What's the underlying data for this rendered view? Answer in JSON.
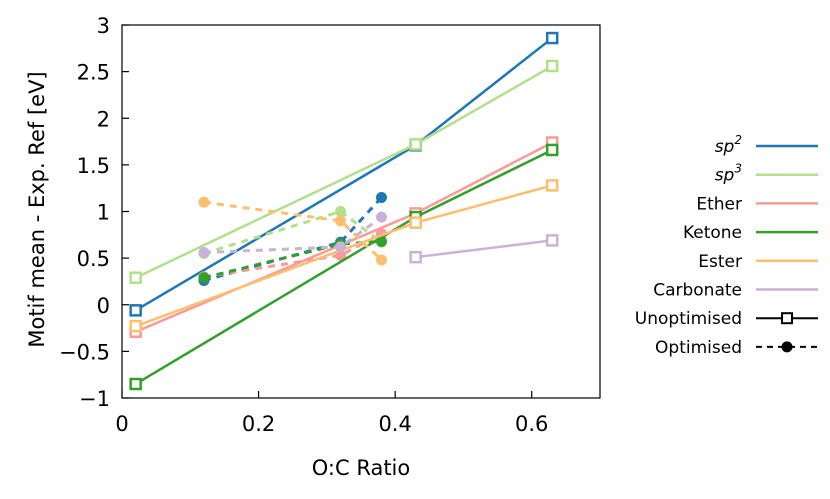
{
  "chart_data": {
    "type": "line",
    "xlabel": "O:C Ratio",
    "ylabel": "Motif mean - Exp. Ref [eV]",
    "xlim": [
      0,
      0.7
    ],
    "ylim": [
      -1,
      3
    ],
    "xticks": [
      0,
      0.2,
      0.4,
      0.6
    ],
    "xtick_labels": [
      "0",
      "0.2",
      "0.4",
      "0.6"
    ],
    "yticks": [
      -1,
      -0.5,
      0,
      0.5,
      1,
      1.5,
      2,
      2.5,
      3
    ],
    "ytick_labels": [
      "−1",
      "−0.5",
      "0",
      "0.5",
      "1",
      "1.5",
      "2",
      "2.5",
      "3"
    ],
    "grid": false,
    "legend_placement": "right-outside",
    "series": [
      {
        "name": "sp",
        "name_sup": "2",
        "italic": true,
        "color": "#1f78b4",
        "unoptimised": {
          "x": [
            0.02,
            0.43,
            0.63
          ],
          "y": [
            -0.06,
            1.71,
            2.86
          ]
        },
        "optimised": {
          "x": [
            0.12,
            0.32,
            0.38
          ],
          "y": [
            0.26,
            0.67,
            1.15
          ]
        }
      },
      {
        "name": "sp",
        "name_sup": "3",
        "italic": true,
        "color": "#b2df8a",
        "unoptimised": {
          "x": [
            0.02,
            0.43,
            0.63
          ],
          "y": [
            0.29,
            1.72,
            2.56
          ]
        },
        "optimised": {
          "x": [
            0.12,
            0.32,
            0.38
          ],
          "y": [
            0.55,
            1.0,
            0.67
          ]
        }
      },
      {
        "name": "Ether",
        "color": "#fb9a99",
        "unoptimised": {
          "x": [
            0.02,
            0.43,
            0.63
          ],
          "y": [
            -0.29,
            0.98,
            1.74
          ]
        },
        "optimised": {
          "x": [
            0.12,
            0.32,
            0.38
          ],
          "y": [
            0.3,
            0.53,
            0.76
          ]
        }
      },
      {
        "name": "Ketone",
        "color": "#33a02c",
        "unoptimised": {
          "x": [
            0.02,
            0.43,
            0.63
          ],
          "y": [
            -0.85,
            0.94,
            1.66
          ]
        },
        "optimised": {
          "x": [
            0.12,
            0.32,
            0.38
          ],
          "y": [
            0.29,
            0.65,
            0.68
          ]
        }
      },
      {
        "name": "Ester",
        "color": "#fdbf6f",
        "unoptimised": {
          "x": [
            0.02,
            0.43,
            0.63
          ],
          "y": [
            -0.23,
            0.88,
            1.28
          ]
        },
        "optimised": {
          "x": [
            0.12,
            0.32,
            0.38
          ],
          "y": [
            1.1,
            0.9,
            0.48
          ]
        }
      },
      {
        "name": "Carbonate",
        "color": "#cab2d6",
        "unoptimised": {
          "x": [
            0.43,
            0.63
          ],
          "y": [
            0.51,
            0.69
          ]
        },
        "optimised": {
          "x": [
            0.12,
            0.32,
            0.38
          ],
          "y": [
            0.56,
            0.62,
            0.94
          ]
        }
      }
    ],
    "style_legend": [
      {
        "name": "Unoptimised",
        "line": "solid",
        "marker": "open-square"
      },
      {
        "name": "Optimised",
        "line": "dashed",
        "marker": "filled-circle"
      }
    ]
  }
}
